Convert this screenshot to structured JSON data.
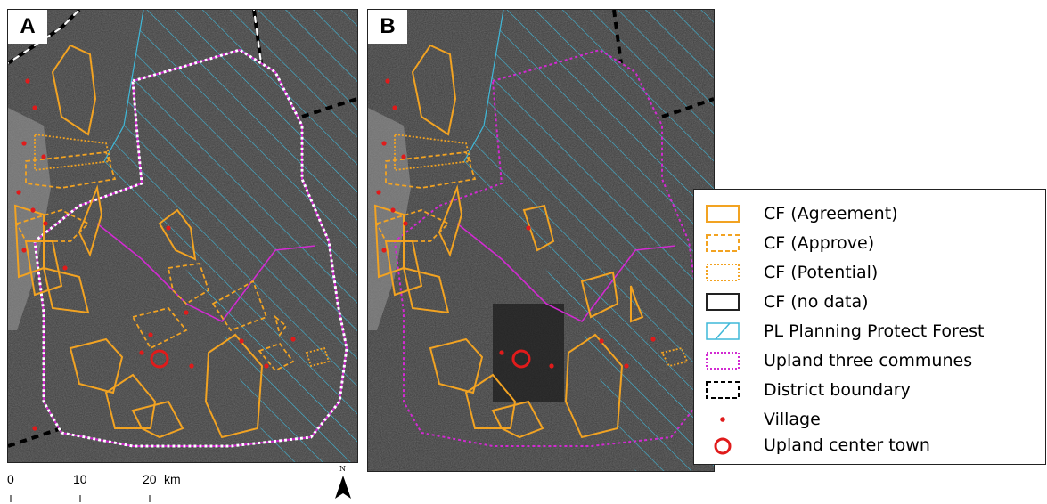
{
  "panels": [
    {
      "letter": "A"
    },
    {
      "letter": "B"
    }
  ],
  "legend": [
    {
      "label": "CF (Agreement)",
      "icon": "solid-orange-box",
      "color": "#f2a322"
    },
    {
      "label": "CF (Approve)",
      "icon": "dashed-orange-box",
      "color": "#f2a322"
    },
    {
      "label": "CF (Potential)",
      "icon": "dotted-orange-box",
      "color": "#f2a322"
    },
    {
      "label": "CF (no data)",
      "icon": "solid-black-box",
      "color": "#222222"
    },
    {
      "label": "PL Planning Protect Forest",
      "icon": "hatched-cyan-box",
      "color": "#3fb8d8"
    },
    {
      "label": "Upland three communes",
      "icon": "dotted-magenta-box",
      "color": "#d22ad2"
    },
    {
      "label": "District boundary",
      "icon": "dashed-black-box",
      "color": "#000000"
    },
    {
      "label": "Village",
      "icon": "red-dot",
      "color": "#e01b1b"
    },
    {
      "label": "Upland center town",
      "icon": "red-circle",
      "color": "#e01b1b"
    }
  ],
  "scale": {
    "ticks": [
      "0",
      "10",
      "20"
    ],
    "unit": "km"
  },
  "north_label": "N"
}
